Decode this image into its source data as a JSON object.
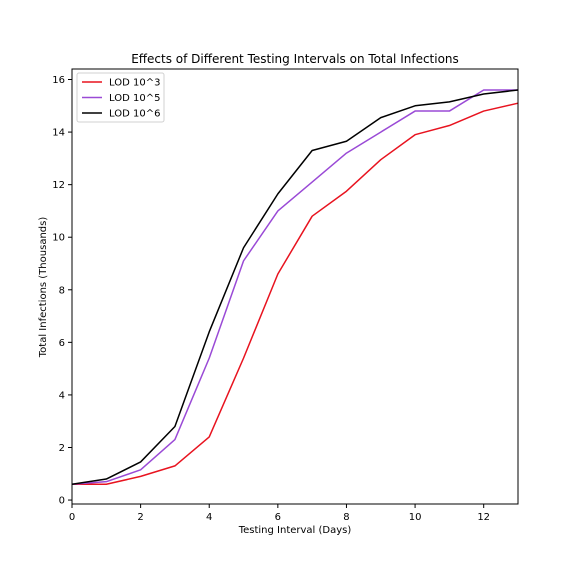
{
  "chart_data": {
    "type": "line",
    "title": "Effects of Different Testing Intervals on Total Infections",
    "xlabel": "Testing Interval (Days)",
    "ylabel": "Total Infections (Thousands)",
    "xlim": [
      0,
      13
    ],
    "ylim": [
      -0.15,
      16.4
    ],
    "xticks": [
      0,
      2,
      4,
      6,
      8,
      10,
      12
    ],
    "yticks": [
      0,
      2,
      4,
      6,
      8,
      10,
      12,
      14,
      16
    ],
    "grid": false,
    "legend_position": "top-left",
    "x": [
      0,
      1,
      2,
      3,
      4,
      5,
      6,
      7,
      8,
      9,
      10,
      11,
      12,
      13
    ],
    "series": [
      {
        "name": "LOD 10^3",
        "color": "#e8131f",
        "values": [
          0.6,
          0.6,
          0.9,
          1.3,
          2.4,
          5.4,
          8.6,
          10.8,
          11.75,
          12.95,
          13.9,
          14.25,
          14.8,
          15.1
        ]
      },
      {
        "name": "LOD 10^5",
        "color": "#9a4ad6",
        "values": [
          0.6,
          0.7,
          1.15,
          2.3,
          5.4,
          9.1,
          11.0,
          12.1,
          13.2,
          14.0,
          14.8,
          14.8,
          15.6,
          15.6
        ]
      },
      {
        "name": "LOD 10^6",
        "color": "#000000",
        "values": [
          0.6,
          0.8,
          1.45,
          2.8,
          6.4,
          9.6,
          11.65,
          13.3,
          13.65,
          14.55,
          15.0,
          15.15,
          15.45,
          15.6
        ]
      }
    ]
  }
}
